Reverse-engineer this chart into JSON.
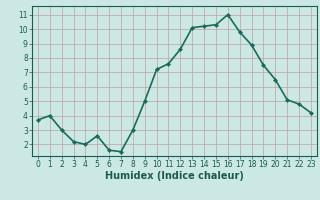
{
  "x": [
    0,
    1,
    2,
    3,
    4,
    5,
    6,
    7,
    8,
    9,
    10,
    11,
    12,
    13,
    14,
    15,
    16,
    17,
    18,
    19,
    20,
    21,
    22,
    23
  ],
  "y": [
    3.7,
    4.0,
    3.0,
    2.2,
    2.0,
    2.6,
    1.6,
    1.5,
    3.0,
    5.0,
    7.2,
    7.6,
    8.6,
    10.1,
    10.2,
    10.3,
    11.0,
    9.8,
    8.9,
    7.5,
    6.5,
    5.1,
    4.8,
    4.2
  ],
  "line_color": "#1a6b5a",
  "marker": "D",
  "marker_size": 2.0,
  "xlabel": "Humidex (Indice chaleur)",
  "xlim": [
    -0.5,
    23.5
  ],
  "ylim": [
    1.2,
    11.6
  ],
  "yticks": [
    2,
    3,
    4,
    5,
    6,
    7,
    8,
    9,
    10,
    11
  ],
  "xticks": [
    0,
    1,
    2,
    3,
    4,
    5,
    6,
    7,
    8,
    9,
    10,
    11,
    12,
    13,
    14,
    15,
    16,
    17,
    18,
    19,
    20,
    21,
    22,
    23
  ],
  "bg_color": "#cce8e4",
  "grid_color": "#c0a0a0",
  "font_color": "#1a5c4e",
  "axis_color": "#1a5c4e",
  "linewidth": 1.2,
  "tick_fontsize": 5.5,
  "xlabel_fontsize": 7.0
}
